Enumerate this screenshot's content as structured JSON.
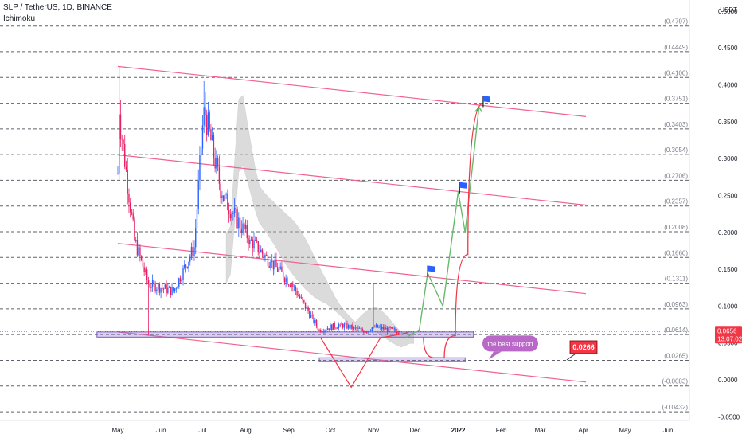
{
  "header": {
    "symbol_line": "SLP / TetherUS, 1D, BINANCE",
    "indicator": "Ichimoku"
  },
  "currency": "USDT",
  "colors": {
    "bull": "#2962ff",
    "bear": "#e91e63",
    "channel": "#f06292",
    "support_box": "#9575cd",
    "green_path": "#66bb6a",
    "red_path": "#f23645",
    "cloud": "#b0b0b0",
    "grid_dash": "#2a2e39",
    "price_tag": "#f23645",
    "callout": "#ba68c8"
  },
  "chart_data": {
    "type": "candlestick",
    "y_axis": {
      "min": -0.055,
      "max": 0.515,
      "ticks": [
        "0.5000",
        "0.4500",
        "0.4000",
        "0.3500",
        "0.3000",
        "0.2500",
        "0.2000",
        "0.1500",
        "0.1000",
        "0.0500",
        "0.0000",
        "-0.0500"
      ],
      "tick_values": [
        0.5,
        0.45,
        0.4,
        0.35,
        0.3,
        0.25,
        0.2,
        0.15,
        0.1,
        0.05,
        0,
        -0.05
      ]
    },
    "x_axis": {
      "labels": [
        "May",
        "Jun",
        "Jul",
        "Aug",
        "Sep",
        "Oct",
        "Nov",
        "Dec",
        "2022",
        "Feb",
        "Mar",
        "Apr",
        "May",
        "Jun"
      ],
      "label_days": [
        0,
        31,
        61,
        92,
        123,
        153,
        184,
        214,
        245,
        276,
        304,
        335,
        365,
        396
      ]
    },
    "fib_levels": [
      {
        "label": "(0.4797)",
        "value": 0.4797
      },
      {
        "label": "(0.4449)",
        "value": 0.4449
      },
      {
        "label": "(0.4100)",
        "value": 0.41
      },
      {
        "label": "(0.3751)",
        "value": 0.3751
      },
      {
        "label": "(0.3403)",
        "value": 0.3403
      },
      {
        "label": "(0.3054)",
        "value": 0.3054
      },
      {
        "label": "(0.2706)",
        "value": 0.2706
      },
      {
        "label": "(0.2357)",
        "value": 0.2357
      },
      {
        "label": "(0.2008)",
        "value": 0.2008
      },
      {
        "label": "(0.1660)",
        "value": 0.166
      },
      {
        "label": "(0.1311)",
        "value": 0.1311
      },
      {
        "label": "(0.0963)",
        "value": 0.0963
      },
      {
        "label": "(0.0614)",
        "value": 0.0614
      },
      {
        "label": "(0.0265)",
        "value": 0.0265
      },
      {
        "label": "(-0.0083)",
        "value": -0.0083
      },
      {
        "label": "(-0.0432)",
        "value": -0.0432
      }
    ],
    "last_price": {
      "value": 0.0656,
      "label": "0.0656",
      "countdown": "13:07:02"
    },
    "target_tag": {
      "value": 0.0266,
      "label": "0.0266"
    },
    "callout": {
      "text": "the best support",
      "value": 0.045
    },
    "channel_lines": [
      {
        "x1": 0,
        "y1": 0.425,
        "x2": 337,
        "y2": 0.357
      },
      {
        "x1": 0,
        "y1": 0.305,
        "x2": 337,
        "y2": 0.237
      },
      {
        "x1": 0,
        "y1": 0.185,
        "x2": 337,
        "y2": 0.117
      },
      {
        "x1": 0,
        "y1": 0.065,
        "x2": 337,
        "y2": -0.003
      }
    ],
    "support_zones": [
      {
        "x1": -15,
        "x2": 256,
        "top": 0.065,
        "bottom": 0.058
      },
      {
        "x1": 145,
        "x2": 250,
        "top": 0.03,
        "bottom": 0.025
      }
    ],
    "red_v": [
      {
        "x": 146,
        "y": 0.057
      },
      {
        "x": 168,
        "y": -0.01
      },
      {
        "x": 189,
        "y": 0.057
      },
      {
        "x": 209,
        "y": 0.064
      }
    ],
    "green_path": [
      {
        "x": 208,
        "y": 0.058
      },
      {
        "x": 217,
        "y": 0.068
      },
      {
        "x": 223,
        "y": 0.145
      },
      {
        "x": 234,
        "y": 0.1
      },
      {
        "x": 245,
        "y": 0.255
      },
      {
        "x": 250,
        "y": 0.2
      },
      {
        "x": 260,
        "y": 0.37
      }
    ],
    "red_curve": [
      {
        "x": 220,
        "y": 0.058
      },
      {
        "x": 228,
        "y": 0.03
      },
      {
        "x": 235,
        "y": 0.03
      },
      {
        "x": 243,
        "y": 0.06
      },
      {
        "x": 252,
        "y": 0.17
      },
      {
        "x": 263,
        "y": 0.375
      }
    ],
    "flags": [
      {
        "x": 223,
        "y": 0.155
      },
      {
        "x": 246,
        "y": 0.268
      },
      {
        "x": 263,
        "y": 0.385
      }
    ],
    "ohlc_description": "Daily SLP/USDT candles from early May 2021 to late November 2021",
    "key_points": [
      {
        "day": 0,
        "close": 0.28
      },
      {
        "day": 1,
        "high": 0.425,
        "close": 0.36
      },
      {
        "day": 12,
        "close": 0.19
      },
      {
        "day": 22,
        "low": 0.06,
        "close": 0.13
      },
      {
        "day": 40,
        "close": 0.12
      },
      {
        "day": 55,
        "close": 0.18
      },
      {
        "day": 62,
        "high": 0.405,
        "close": 0.37
      },
      {
        "day": 75,
        "close": 0.25
      },
      {
        "day": 95,
        "close": 0.19
      },
      {
        "day": 110,
        "close": 0.16
      },
      {
        "day": 125,
        "close": 0.13
      },
      {
        "day": 145,
        "close": 0.068
      },
      {
        "day": 160,
        "close": 0.075
      },
      {
        "day": 178,
        "close": 0.066
      },
      {
        "day": 184,
        "high": 0.13,
        "close": 0.072
      },
      {
        "day": 203,
        "close": 0.0656
      }
    ]
  }
}
